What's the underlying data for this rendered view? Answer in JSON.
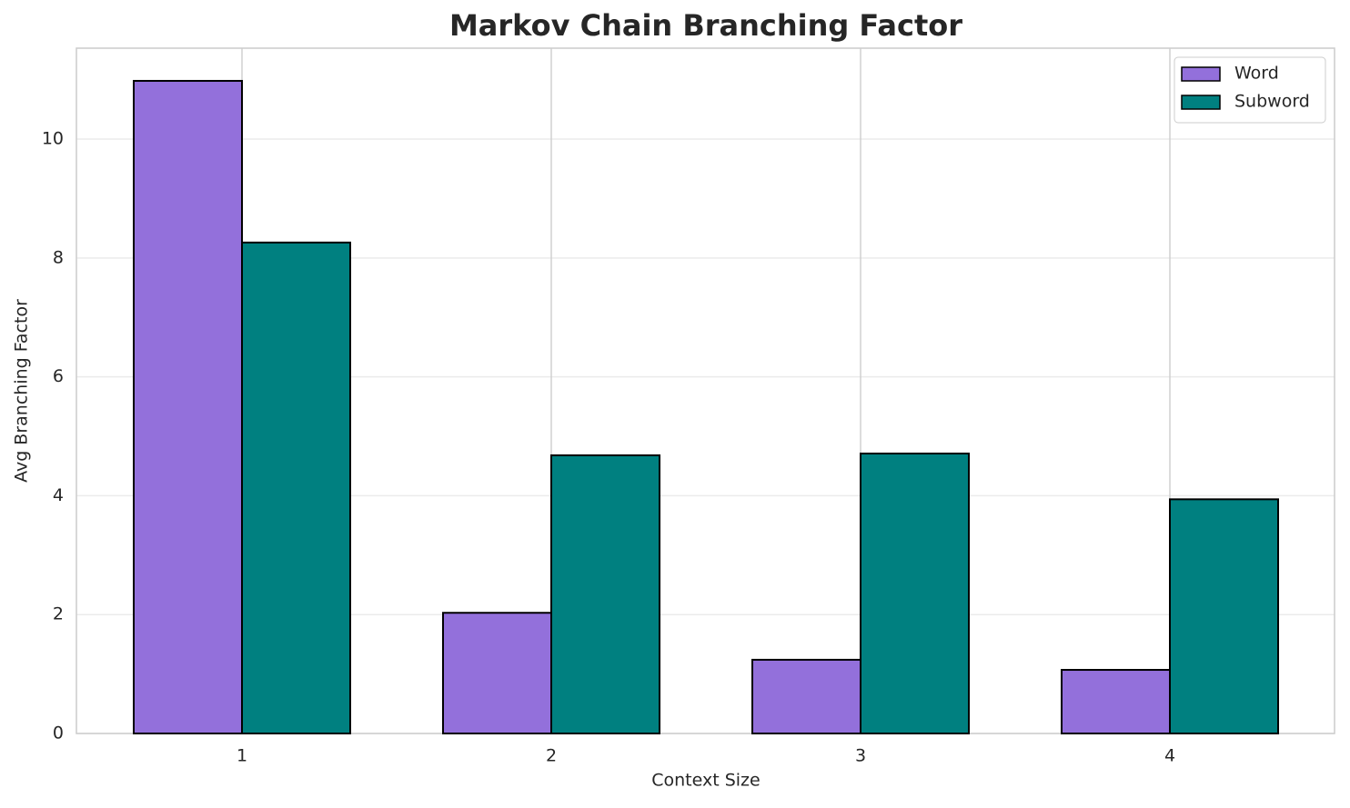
{
  "chart_data": {
    "type": "bar",
    "title": "Markov Chain Branching Factor",
    "x_label": "Context Size",
    "y_label": "Avg Branching Factor",
    "categories": [
      "1",
      "2",
      "3",
      "4"
    ],
    "series": [
      {
        "name": "Word",
        "color": "#9370db",
        "values": [
          10.98,
          2.03,
          1.24,
          1.07
        ]
      },
      {
        "name": "Subword",
        "color": "#008080",
        "values": [
          8.26,
          4.68,
          4.71,
          3.94
        ]
      }
    ],
    "ylim": [
      0,
      11.53
    ],
    "yticks": [
      0,
      2,
      4,
      6,
      8,
      10
    ],
    "grid": true,
    "legend": "upper right"
  }
}
